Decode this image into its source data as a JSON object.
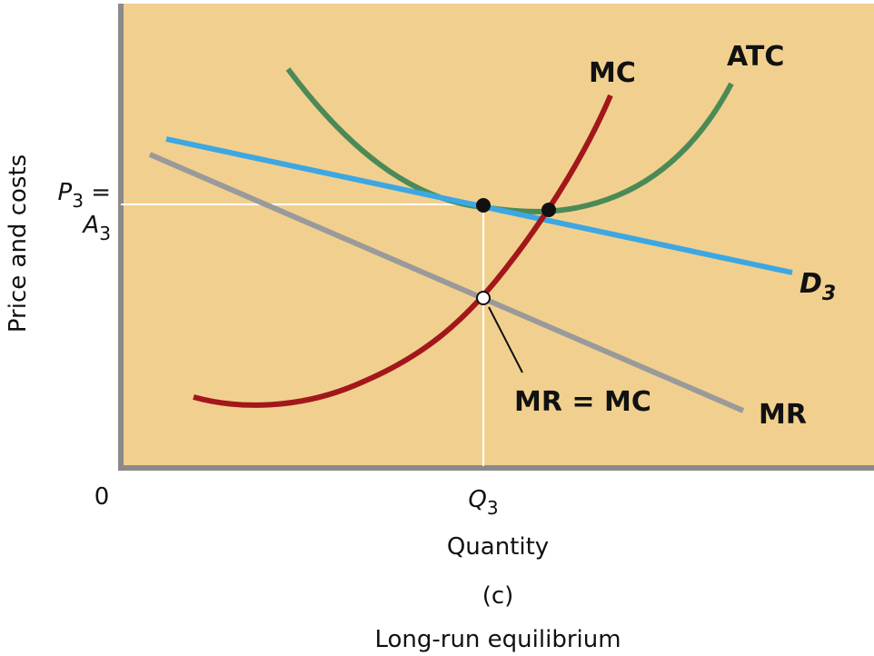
{
  "axes": {
    "y_label": "Price and costs",
    "x_label": "Quantity",
    "origin": "0",
    "price_label": {
      "base": "P",
      "sub": "3",
      "suffix": " ="
    },
    "cost_label": {
      "base": "A",
      "sub": "3"
    },
    "quantity_label": {
      "base": "Q",
      "sub": "3"
    }
  },
  "curves": {
    "mc": "MC",
    "atc": "ATC",
    "demand": {
      "base": "D",
      "sub": "3"
    },
    "mr": "MR"
  },
  "annotations": {
    "equilibrium": "MR = MC"
  },
  "caption": {
    "panel": "(c)",
    "title": "Long-run equilibrium"
  }
}
